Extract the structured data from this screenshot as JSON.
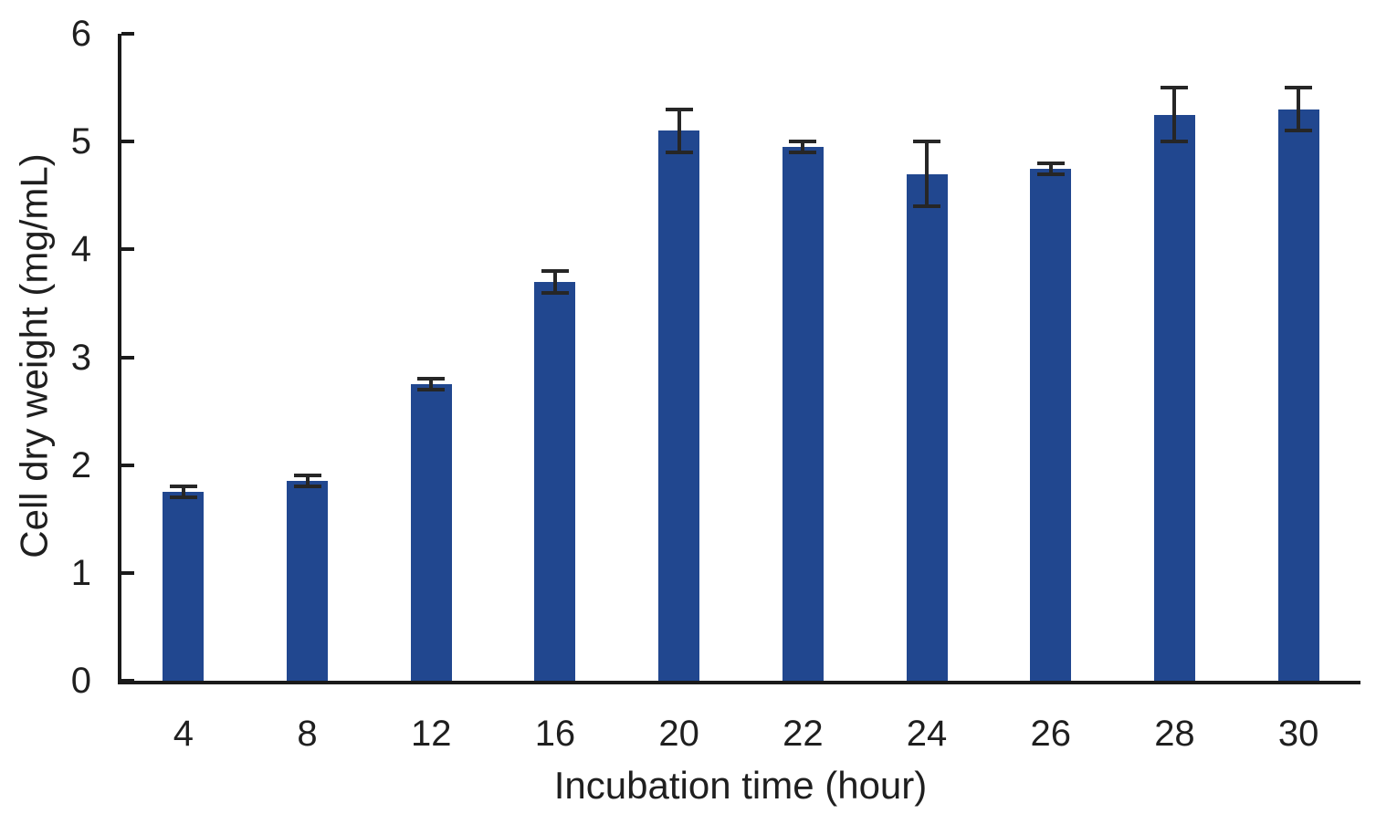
{
  "chart_data": {
    "type": "bar",
    "title": "",
    "xlabel": "Incubation time (hour)",
    "ylabel": "Cell dry weight (mg/mL)",
    "categories": [
      "4",
      "8",
      "12",
      "16",
      "20",
      "22",
      "24",
      "26",
      "28",
      "30"
    ],
    "values": [
      1.75,
      1.85,
      2.75,
      3.7,
      5.1,
      4.95,
      4.7,
      4.75,
      5.25,
      5.3
    ],
    "errors": [
      0.05,
      0.05,
      0.05,
      0.1,
      0.2,
      0.05,
      0.3,
      0.05,
      0.25,
      0.2
    ],
    "ylim": [
      0,
      6
    ],
    "yticks": [
      0,
      1,
      2,
      3,
      4,
      5,
      6
    ],
    "grid": false,
    "legend": null,
    "bar_color": "#21478F",
    "error_bar_color": "#262626",
    "axis_color": "#1a1a1a",
    "text_color": "#1f1f1f",
    "background_color": "#ffffff"
  }
}
